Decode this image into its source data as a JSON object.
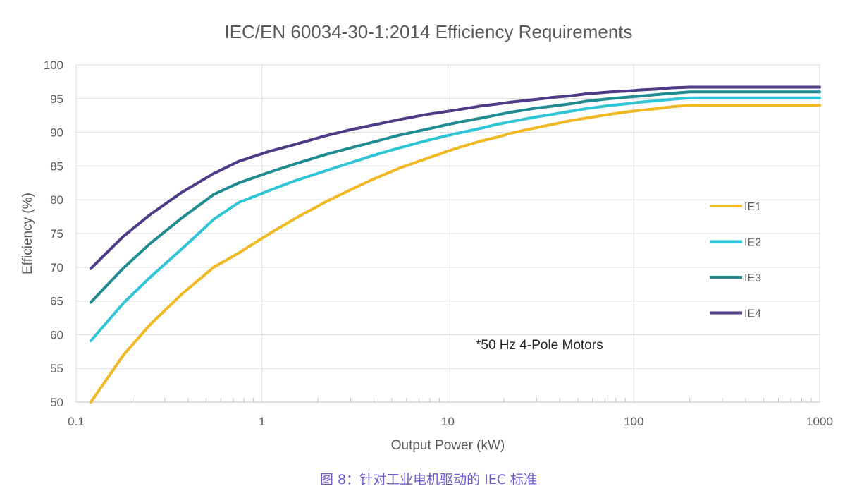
{
  "chart_data": {
    "type": "line",
    "title": "IEC/EN 60034-30-1:2014 Efficiency Requirements",
    "xlabel": "Output Power (kW)",
    "ylabel": "Efficiency (%)",
    "xscale": "log",
    "xlim": [
      0.1,
      1000
    ],
    "ylim": [
      50,
      100
    ],
    "xticks": [
      "0.1",
      "1",
      "10",
      "100",
      "1000"
    ],
    "yticks": [
      "50",
      "55",
      "60",
      "65",
      "70",
      "75",
      "80",
      "85",
      "90",
      "95",
      "100"
    ],
    "grid": true,
    "legend_position": "right",
    "annotation": "*50 Hz 4-Pole Motors",
    "x": [
      0.12,
      0.18,
      0.25,
      0.37,
      0.55,
      0.75,
      1.1,
      1.5,
      2.2,
      3,
      4,
      5.5,
      7.5,
      11,
      15,
      18.5,
      22,
      30,
      37,
      45,
      55,
      75,
      90,
      110,
      132,
      160,
      200,
      1000
    ],
    "series": [
      {
        "name": "IE1",
        "color": "#f0b823",
        "values": [
          50.0,
          57.0,
          61.5,
          66.0,
          70.0,
          72.1,
          75.0,
          77.2,
          79.7,
          81.5,
          83.1,
          84.7,
          86.0,
          87.6,
          88.7,
          89.3,
          89.9,
          90.7,
          91.2,
          91.7,
          92.1,
          92.7,
          93.0,
          93.3,
          93.5,
          93.8,
          94.0,
          94.0
        ]
      },
      {
        "name": "IE2",
        "color": "#2fc4d6",
        "values": [
          59.1,
          64.7,
          68.5,
          72.7,
          77.1,
          79.6,
          81.4,
          82.8,
          84.3,
          85.5,
          86.6,
          87.7,
          88.7,
          89.8,
          90.6,
          91.2,
          91.6,
          92.3,
          92.7,
          93.1,
          93.5,
          94.0,
          94.2,
          94.5,
          94.7,
          94.9,
          95.1,
          95.1
        ]
      },
      {
        "name": "IE3",
        "color": "#1f8a90",
        "values": [
          64.8,
          69.9,
          73.5,
          77.3,
          80.8,
          82.5,
          84.1,
          85.3,
          86.7,
          87.7,
          88.6,
          89.6,
          90.4,
          91.4,
          92.1,
          92.6,
          93.0,
          93.6,
          93.9,
          94.2,
          94.6,
          95.0,
          95.2,
          95.4,
          95.6,
          95.8,
          96.0,
          96.0
        ]
      },
      {
        "name": "IE4",
        "color": "#4e3a86",
        "values": [
          69.8,
          74.6,
          77.8,
          81.1,
          83.9,
          85.7,
          87.2,
          88.2,
          89.5,
          90.4,
          91.1,
          91.9,
          92.6,
          93.3,
          93.9,
          94.2,
          94.5,
          94.9,
          95.2,
          95.4,
          95.7,
          96.0,
          96.1,
          96.3,
          96.4,
          96.6,
          96.7,
          96.7
        ]
      }
    ]
  },
  "caption": "图 8：针对工业电机驱动的 IEC 标准"
}
